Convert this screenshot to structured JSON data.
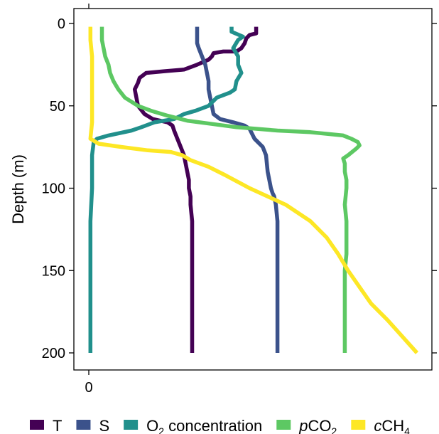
{
  "chart_data": {
    "type": "line",
    "ylabel": "Depth (m)",
    "xlabel": "",
    "y_inverted": true,
    "ylim": [
      0,
      200
    ],
    "yticks": [
      "0",
      "50",
      "100",
      "150",
      "200"
    ],
    "xticks": [
      "0"
    ],
    "xlim": [
      0,
      20
    ],
    "grid": false,
    "legend_position": "bottom",
    "legend": [
      {
        "key": "T",
        "prefix": "",
        "label": "T",
        "sub": "",
        "color": "#440154"
      },
      {
        "key": "S",
        "prefix": "",
        "label": "S",
        "sub": "",
        "color": "#3b528b"
      },
      {
        "key": "O2",
        "prefix": "",
        "label": "O",
        "sub": "2",
        "suffix": " concentration",
        "color": "#21908c"
      },
      {
        "key": "pCO2",
        "prefix": "p",
        "label": "CO",
        "sub": "2",
        "color": "#5dc863"
      },
      {
        "key": "cCH4",
        "prefix": "c",
        "label": "CH",
        "sub": "4",
        "color": "#fde725"
      }
    ],
    "series": [
      {
        "key": "T",
        "color": "#440154",
        "points": [
          [
            10.2,
            2
          ],
          [
            10.2,
            6
          ],
          [
            9.8,
            7
          ],
          [
            9.6,
            9
          ],
          [
            9.5,
            12
          ],
          [
            9.3,
            15
          ],
          [
            9.0,
            17
          ],
          [
            8.2,
            17
          ],
          [
            7.6,
            18
          ],
          [
            7.5,
            20
          ],
          [
            7.3,
            22
          ],
          [
            6.6,
            25
          ],
          [
            5.8,
            28
          ],
          [
            4.6,
            29
          ],
          [
            3.5,
            30
          ],
          [
            3.1,
            33
          ],
          [
            3.0,
            36
          ],
          [
            2.8,
            40
          ],
          [
            2.9,
            45
          ],
          [
            3.0,
            50
          ],
          [
            3.4,
            55
          ],
          [
            3.9,
            58
          ],
          [
            4.8,
            60
          ],
          [
            5.1,
            62
          ],
          [
            5.2,
            65
          ],
          [
            5.4,
            70
          ],
          [
            5.6,
            75
          ],
          [
            5.8,
            80
          ],
          [
            5.9,
            85
          ],
          [
            6.0,
            90
          ],
          [
            6.1,
            95
          ],
          [
            6.1,
            100
          ],
          [
            6.2,
            105
          ],
          [
            6.2,
            110
          ],
          [
            6.3,
            120
          ],
          [
            6.3,
            130
          ],
          [
            6.3,
            140
          ],
          [
            6.3,
            150
          ],
          [
            6.3,
            160
          ],
          [
            6.3,
            170
          ],
          [
            6.3,
            180
          ],
          [
            6.3,
            190
          ],
          [
            6.3,
            200
          ]
        ]
      },
      {
        "key": "S",
        "color": "#3b528b",
        "points": [
          [
            6.6,
            2
          ],
          [
            6.6,
            8
          ],
          [
            6.6,
            12
          ],
          [
            6.7,
            15
          ],
          [
            6.9,
            20
          ],
          [
            7.1,
            25
          ],
          [
            7.2,
            30
          ],
          [
            7.3,
            35
          ],
          [
            7.3,
            40
          ],
          [
            7.4,
            45
          ],
          [
            7.5,
            50
          ],
          [
            7.6,
            55
          ],
          [
            8.0,
            58
          ],
          [
            8.8,
            60
          ],
          [
            9.5,
            62
          ],
          [
            9.8,
            64
          ],
          [
            9.9,
            66
          ],
          [
            10.1,
            70
          ],
          [
            10.6,
            75
          ],
          [
            10.8,
            80
          ],
          [
            10.9,
            90
          ],
          [
            11.0,
            95
          ],
          [
            11.1,
            100
          ],
          [
            11.2,
            103
          ],
          [
            11.3,
            105
          ],
          [
            11.4,
            110
          ],
          [
            11.5,
            120
          ],
          [
            11.5,
            130
          ],
          [
            11.5,
            140
          ],
          [
            11.5,
            150
          ],
          [
            11.5,
            160
          ],
          [
            11.5,
            170
          ],
          [
            11.5,
            180
          ],
          [
            11.5,
            190
          ],
          [
            11.5,
            200
          ]
        ]
      },
      {
        "key": "O2",
        "color": "#21908c",
        "points": [
          [
            8.7,
            2
          ],
          [
            8.7,
            5
          ],
          [
            9.4,
            8
          ],
          [
            9.1,
            10
          ],
          [
            8.8,
            15
          ],
          [
            9.1,
            20
          ],
          [
            9.1,
            25
          ],
          [
            9.3,
            30
          ],
          [
            9.0,
            35
          ],
          [
            8.9,
            40
          ],
          [
            8.6,
            42
          ],
          [
            7.8,
            45
          ],
          [
            7.5,
            48
          ],
          [
            7.3,
            50
          ],
          [
            6.5,
            53
          ],
          [
            5.8,
            55
          ],
          [
            5.2,
            58
          ],
          [
            4.0,
            60
          ],
          [
            3.2,
            63
          ],
          [
            2.6,
            65
          ],
          [
            1.2,
            68
          ],
          [
            0.5,
            70
          ],
          [
            0.3,
            72
          ],
          [
            0.2,
            80
          ],
          [
            0.2,
            90
          ],
          [
            0.2,
            100
          ],
          [
            0.1,
            120
          ],
          [
            0.1,
            140
          ],
          [
            0.1,
            160
          ],
          [
            0.1,
            180
          ],
          [
            0.1,
            200
          ]
        ]
      },
      {
        "key": "pCO2",
        "color": "#5dc863",
        "points": [
          [
            0.8,
            2
          ],
          [
            0.8,
            10
          ],
          [
            0.9,
            15
          ],
          [
            1.0,
            20
          ],
          [
            1.2,
            25
          ],
          [
            1.3,
            30
          ],
          [
            1.5,
            35
          ],
          [
            1.8,
            40
          ],
          [
            2.2,
            45
          ],
          [
            3.0,
            50
          ],
          [
            3.8,
            53
          ],
          [
            4.8,
            56
          ],
          [
            6.0,
            59
          ],
          [
            7.5,
            61
          ],
          [
            9.0,
            63
          ],
          [
            11.5,
            65
          ],
          [
            13.5,
            66
          ],
          [
            15.5,
            68
          ],
          [
            16.0,
            70
          ],
          [
            16.4,
            72
          ],
          [
            16.5,
            74
          ],
          [
            16.3,
            76
          ],
          [
            15.8,
            80
          ],
          [
            15.5,
            82
          ],
          [
            15.6,
            85
          ],
          [
            15.6,
            90
          ],
          [
            15.7,
            95
          ],
          [
            15.7,
            100
          ],
          [
            15.6,
            110
          ],
          [
            15.7,
            120
          ],
          [
            15.7,
            130
          ],
          [
            15.7,
            140
          ],
          [
            15.6,
            150
          ],
          [
            15.6,
            160
          ],
          [
            15.6,
            170
          ],
          [
            15.6,
            180
          ],
          [
            15.6,
            190
          ],
          [
            15.6,
            200
          ]
        ]
      },
      {
        "key": "cCH4",
        "color": "#fde725",
        "points": [
          [
            0.1,
            2
          ],
          [
            0.1,
            10
          ],
          [
            0.2,
            20
          ],
          [
            0.2,
            40
          ],
          [
            0.2,
            60
          ],
          [
            0.1,
            70
          ],
          [
            0.6,
            73
          ],
          [
            2.0,
            75
          ],
          [
            3.6,
            77
          ],
          [
            5.0,
            78
          ],
          [
            5.7,
            80
          ],
          [
            6.2,
            83
          ],
          [
            7.3,
            87
          ],
          [
            8.3,
            92
          ],
          [
            9.8,
            100
          ],
          [
            12.0,
            110
          ],
          [
            13.5,
            120
          ],
          [
            14.5,
            130
          ],
          [
            15.2,
            140
          ],
          [
            15.8,
            150
          ],
          [
            16.5,
            160
          ],
          [
            17.2,
            170
          ],
          [
            18.2,
            180
          ],
          [
            19.1,
            190
          ],
          [
            20.0,
            200
          ]
        ]
      }
    ]
  }
}
